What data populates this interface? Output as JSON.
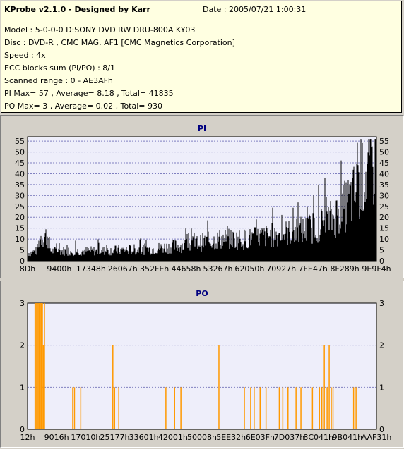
{
  "info": {
    "title": "KProbe v2.1.0 - Designed by Karr",
    "date": "Date : 2005/07/21 1:00:31",
    "lines": [
      "Model : 5-0-0-0 D:SONY    DVD RW DRU-800A  KY03",
      "Disc : DVD-R , CMC MAG. AF1 [CMC Magnetics Corporation]",
      "Speed : 4x",
      "ECC blocks sum (PI/PO) : 8/1",
      "Scanned range : 0 - AE3AFh",
      "PI Max= 57 , Average= 8.18 , Total= 41835",
      "PO Max= 3 , Average= 0.02 , Total= 930"
    ]
  },
  "colors": {
    "pi_bar": "#000000",
    "po_bar": "#ff9900",
    "plot_bg": "#eeeefa",
    "grid": "#8080c0"
  },
  "chart_data": [
    {
      "type": "bar",
      "title": "PI",
      "ylim": [
        0,
        57
      ],
      "y_ticks": [
        "0",
        "5",
        "10",
        "15",
        "20",
        "25",
        "30",
        "35",
        "40",
        "45",
        "50",
        "55"
      ],
      "x_tick_labels": [
        "8Dh",
        "9400h",
        "17348h",
        "26067h",
        "352FEh",
        "44658h",
        "53267h",
        "62050h",
        "70927h",
        "7FE47h",
        "8F289h",
        "9E9F4h"
      ],
      "profile": [
        {
          "x": 0,
          "y": 4
        },
        {
          "x": 2.5,
          "y": 5
        },
        {
          "x": 3.5,
          "y": 12
        },
        {
          "x": 5.5,
          "y": 13
        },
        {
          "x": 6.5,
          "y": 5
        },
        {
          "x": 20,
          "y": 5
        },
        {
          "x": 35,
          "y": 6
        },
        {
          "x": 45,
          "y": 8
        },
        {
          "x": 55,
          "y": 11
        },
        {
          "x": 62,
          "y": 11
        },
        {
          "x": 70,
          "y": 13
        },
        {
          "x": 80,
          "y": 16
        },
        {
          "x": 86,
          "y": 20
        },
        {
          "x": 90,
          "y": 26
        },
        {
          "x": 94,
          "y": 35
        },
        {
          "x": 97,
          "y": 45
        },
        {
          "x": 100,
          "y": 52
        }
      ],
      "max_value": 57,
      "average": 8.18
    },
    {
      "type": "bar",
      "title": "PO",
      "ylim": [
        0,
        3
      ],
      "y_ticks": [
        "0",
        "1",
        "2",
        "3"
      ],
      "x_tick_labels": [
        "12h",
        "9016h",
        "17010h",
        "25177h",
        "33601h",
        "42001h",
        "50008h",
        "5EE32h",
        "6E03Fh",
        "7D037h",
        "8C041h",
        "9B041h",
        "AAF31h"
      ],
      "spikes": [
        {
          "x": 2.0,
          "y": 3
        },
        {
          "x": 2.3,
          "y": 3
        },
        {
          "x": 2.6,
          "y": 3
        },
        {
          "x": 2.9,
          "y": 3
        },
        {
          "x": 3.2,
          "y": 3
        },
        {
          "x": 3.5,
          "y": 3
        },
        {
          "x": 3.8,
          "y": 3
        },
        {
          "x": 4.1,
          "y": 3
        },
        {
          "x": 4.4,
          "y": 2
        },
        {
          "x": 4.7,
          "y": 3
        },
        {
          "x": 12.8,
          "y": 1
        },
        {
          "x": 13.3,
          "y": 1
        },
        {
          "x": 15.1,
          "y": 1
        },
        {
          "x": 24.3,
          "y": 2
        },
        {
          "x": 24.8,
          "y": 1
        },
        {
          "x": 26.0,
          "y": 1
        },
        {
          "x": 39.5,
          "y": 1
        },
        {
          "x": 42.0,
          "y": 1
        },
        {
          "x": 43.8,
          "y": 1
        },
        {
          "x": 54.7,
          "y": 2
        },
        {
          "x": 62.0,
          "y": 1
        },
        {
          "x": 63.8,
          "y": 1
        },
        {
          "x": 64.8,
          "y": 1
        },
        {
          "x": 66.5,
          "y": 1
        },
        {
          "x": 68.2,
          "y": 1
        },
        {
          "x": 72.0,
          "y": 1
        },
        {
          "x": 73.0,
          "y": 1
        },
        {
          "x": 74.5,
          "y": 1
        },
        {
          "x": 76.8,
          "y": 1
        },
        {
          "x": 78.2,
          "y": 1
        },
        {
          "x": 81.5,
          "y": 1
        },
        {
          "x": 83.5,
          "y": 1
        },
        {
          "x": 84.2,
          "y": 1
        },
        {
          "x": 84.9,
          "y": 2
        },
        {
          "x": 85.7,
          "y": 1
        },
        {
          "x": 86.3,
          "y": 2
        },
        {
          "x": 86.9,
          "y": 1
        },
        {
          "x": 87.4,
          "y": 1
        },
        {
          "x": 93.3,
          "y": 1
        },
        {
          "x": 94.0,
          "y": 1
        }
      ],
      "max_value": 3,
      "average": 0.02
    }
  ]
}
